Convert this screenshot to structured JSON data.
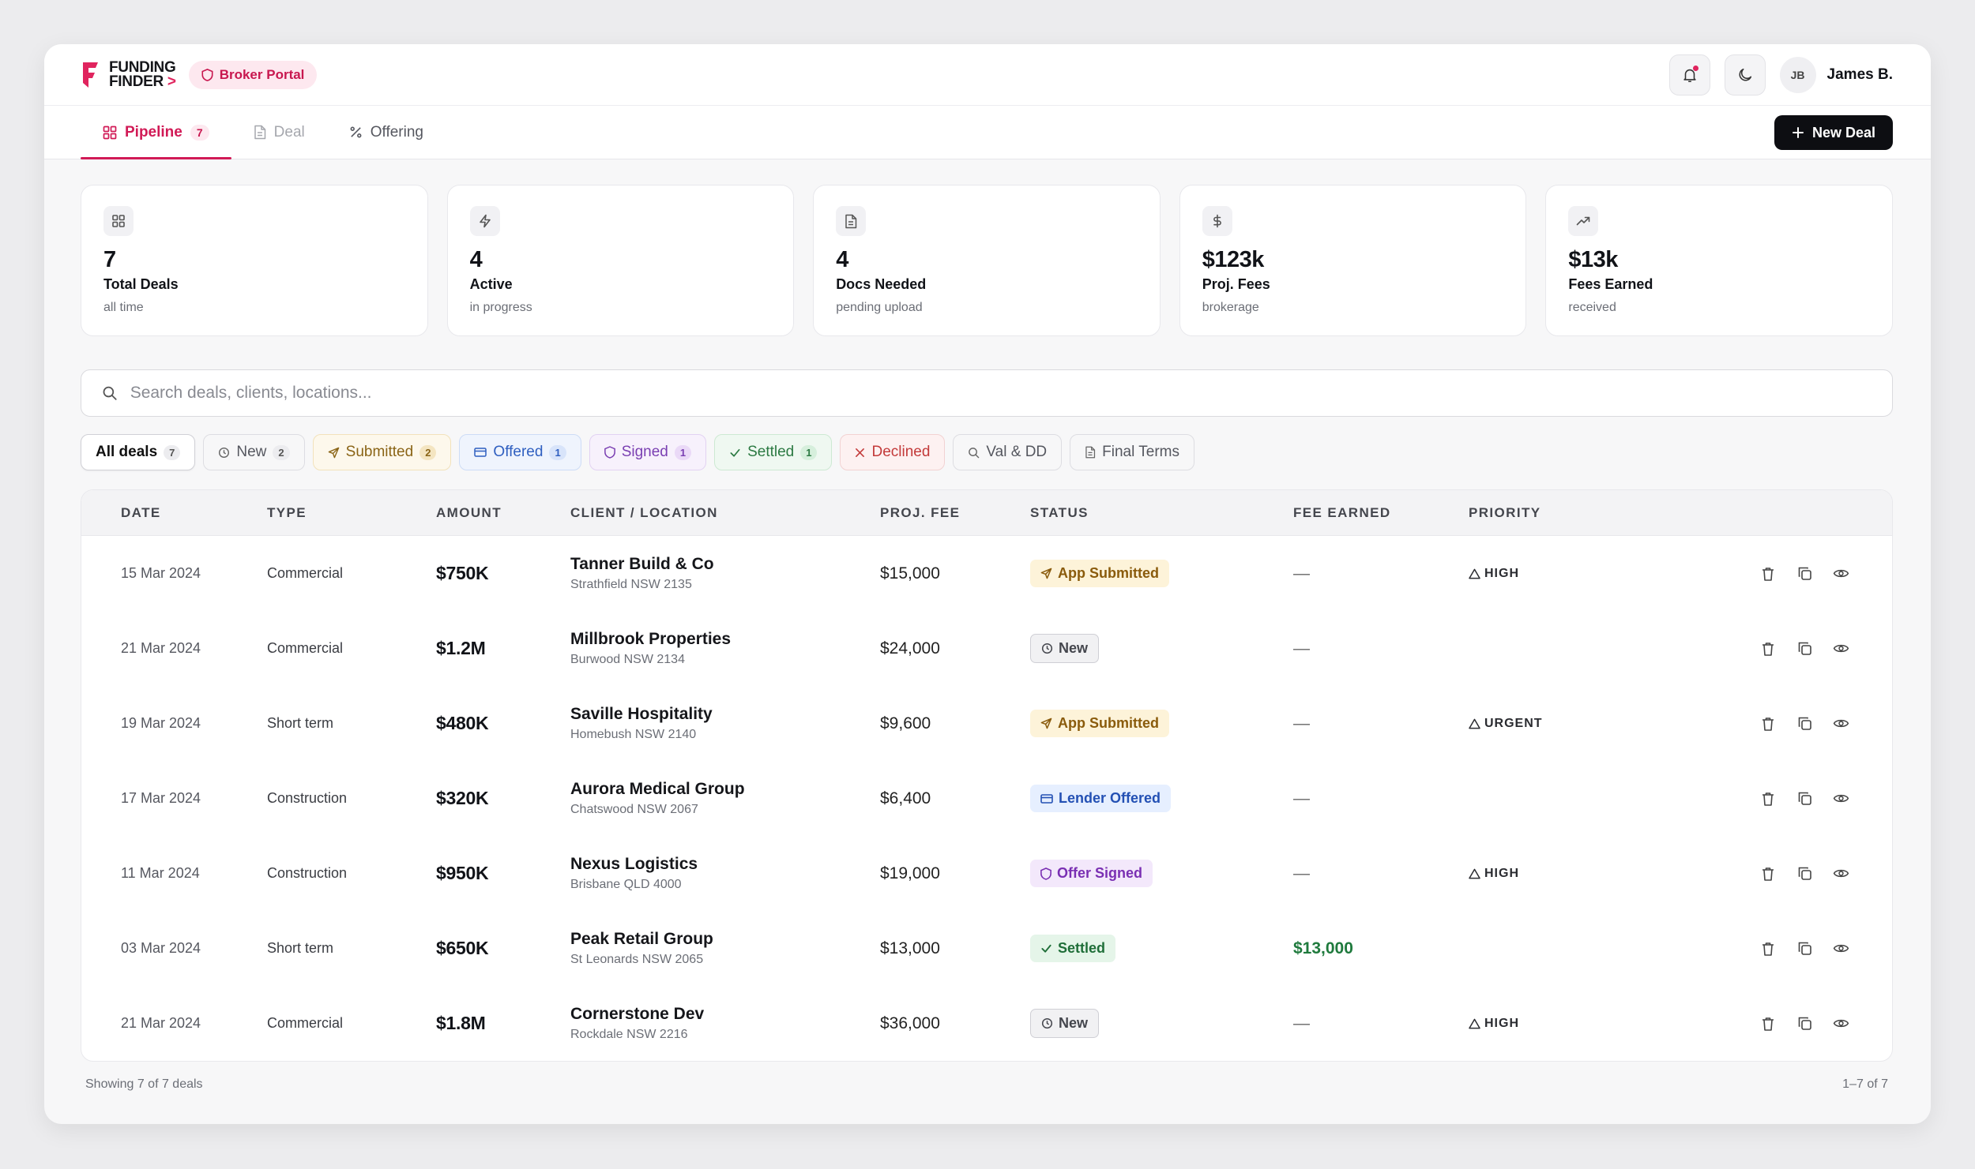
{
  "header": {
    "logo_line1": "FUNDING",
    "logo_line2": "FINDER",
    "logo_arrow": ">",
    "portal_label": "Broker Portal",
    "user_initials": "JB",
    "user_name": "James B."
  },
  "tabs": [
    {
      "label": "Pipeline",
      "count": "7",
      "icon": "grid-icon"
    },
    {
      "label": "Deal",
      "icon": "document-icon"
    },
    {
      "label": "Offering",
      "icon": "percent-icon"
    }
  ],
  "new_deal_label": "New Deal",
  "stats": [
    {
      "value": "7",
      "label": "Total Deals",
      "sub": "all time",
      "icon": "grid-icon"
    },
    {
      "value": "4",
      "label": "Active",
      "sub": "in progress",
      "icon": "bolt-icon"
    },
    {
      "value": "4",
      "label": "Docs Needed",
      "sub": "pending upload",
      "icon": "document-icon"
    },
    {
      "value": "$123k",
      "label": "Proj. Fees",
      "sub": "brokerage",
      "icon": "dollar-icon"
    },
    {
      "value": "$13k",
      "label": "Fees Earned",
      "sub": "received",
      "icon": "trending-up-icon"
    }
  ],
  "search": {
    "placeholder": "Search deals, clients, locations..."
  },
  "filters": [
    {
      "label": "All deals",
      "count": "7"
    },
    {
      "label": "New",
      "count": "2"
    },
    {
      "label": "Submitted",
      "count": "2"
    },
    {
      "label": "Offered",
      "count": "1"
    },
    {
      "label": "Signed",
      "count": "1"
    },
    {
      "label": "Settled",
      "count": "1"
    },
    {
      "label": "Declined"
    },
    {
      "label": "Val & DD"
    },
    {
      "label": "Final Terms"
    }
  ],
  "table": {
    "columns": [
      "DATE",
      "TYPE",
      "AMOUNT",
      "CLIENT / LOCATION",
      "PROJ. FEE",
      "STATUS",
      "FEE EARNED",
      "PRIORITY"
    ],
    "rows": [
      {
        "date": "15 Mar 2024",
        "type": "Commercial",
        "amount": "$750K",
        "client": "Tanner Build & Co",
        "location": "Strathfield NSW 2135",
        "fee": "$15,000",
        "status": "App Submitted",
        "earned": "—",
        "priority": "HIGH"
      },
      {
        "date": "21 Mar 2024",
        "type": "Commercial",
        "amount": "$1.2M",
        "client": "Millbrook Properties",
        "location": "Burwood NSW 2134",
        "fee": "$24,000",
        "status": "New",
        "earned": "—",
        "priority": ""
      },
      {
        "date": "19 Mar 2024",
        "type": "Short term",
        "amount": "$480K",
        "client": "Saville Hospitality",
        "location": "Homebush NSW 2140",
        "fee": "$9,600",
        "status": "App Submitted",
        "earned": "—",
        "priority": "URGENT"
      },
      {
        "date": "17 Mar 2024",
        "type": "Construction",
        "amount": "$320K",
        "client": "Aurora Medical Group",
        "location": "Chatswood NSW 2067",
        "fee": "$6,400",
        "status": "Lender Offered",
        "earned": "—",
        "priority": ""
      },
      {
        "date": "11 Mar 2024",
        "type": "Construction",
        "amount": "$950K",
        "client": "Nexus Logistics",
        "location": "Brisbane QLD 4000",
        "fee": "$19,000",
        "status": "Offer Signed",
        "earned": "—",
        "priority": "HIGH"
      },
      {
        "date": "03 Mar 2024",
        "type": "Short term",
        "amount": "$650K",
        "client": "Peak Retail Group",
        "location": "St Leonards NSW 2065",
        "fee": "$13,000",
        "status": "Settled",
        "earned": "$13,000",
        "priority": ""
      },
      {
        "date": "21 Mar 2024",
        "type": "Commercial",
        "amount": "$1.8M",
        "client": "Cornerstone Dev",
        "location": "Rockdale NSW 2216",
        "fee": "$36,000",
        "status": "New",
        "earned": "—",
        "priority": "HIGH"
      }
    ]
  },
  "footer": {
    "showing": "Showing 7 of 7 deals",
    "range": "1–7 of 7"
  },
  "colors": {
    "brand": "#d11a56",
    "dark_button": "#0d0e12"
  }
}
